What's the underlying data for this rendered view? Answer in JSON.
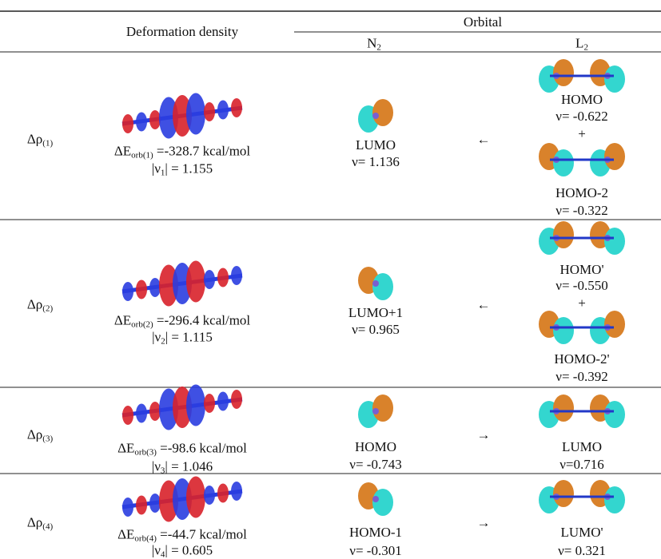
{
  "header": {
    "deformation": "Deformation density",
    "orbital": "Orbital",
    "n2": {
      "base": "N",
      "sub": "2"
    },
    "l2": {
      "base": "L",
      "sub": "2"
    }
  },
  "rows": [
    {
      "label": {
        "base": "Δρ",
        "sub": "(1)"
      },
      "energy": {
        "pre": "ΔE",
        "sub": "orb(1)",
        "post": " =-328.7 kcal/mol"
      },
      "nu": {
        "pre": "|ν",
        "sub": "1",
        "post": "| = 1.155"
      },
      "n2": {
        "name": "LUMO",
        "nu": "ν= 1.136"
      },
      "arrow": "←",
      "l2": [
        {
          "name": "HOMO",
          "nu": "ν= -0.622"
        },
        {
          "name": "HOMO-2",
          "nu": "ν= -0.322"
        }
      ],
      "plus": "+"
    },
    {
      "label": {
        "base": "Δρ",
        "sub": "(2)"
      },
      "energy": {
        "pre": "ΔE",
        "sub": "orb(2)",
        "post": " =-296.4 kcal/mol"
      },
      "nu": {
        "pre": "|ν",
        "sub": "2",
        "post": "| = 1.115"
      },
      "n2": {
        "name": "LUMO+1",
        "nu": "ν= 0.965"
      },
      "arrow": "←",
      "l2": [
        {
          "name": "HOMO'",
          "nu": "ν= -0.550"
        },
        {
          "name": "HOMO-2'",
          "nu": "ν= -0.392"
        }
      ],
      "plus": "+"
    },
    {
      "label": {
        "base": "Δρ",
        "sub": "(3)"
      },
      "energy": {
        "pre": "ΔE",
        "sub": "orb(3)",
        "post": " =-98.6 kcal/mol"
      },
      "nu": {
        "pre": "|ν",
        "sub": "3",
        "post": "| = 1.046"
      },
      "n2": {
        "name": "HOMO",
        "nu": "ν= -0.743"
      },
      "arrow": "→",
      "l2": [
        {
          "name": "LUMO",
          "nu": "ν=0.716"
        }
      ]
    },
    {
      "label": {
        "base": "Δρ",
        "sub": "(4)"
      },
      "energy": {
        "pre": "ΔE",
        "sub": "orb(4)",
        "post": " =-44.7 kcal/mol"
      },
      "nu": {
        "pre": "|ν",
        "sub": "4",
        "post": "| = 0.605"
      },
      "n2": {
        "name": "HOMO-1",
        "nu": "ν= -0.301"
      },
      "arrow": "→",
      "l2": [
        {
          "name": "LUMO'",
          "nu": "ν= 0.321"
        }
      ]
    }
  ]
}
